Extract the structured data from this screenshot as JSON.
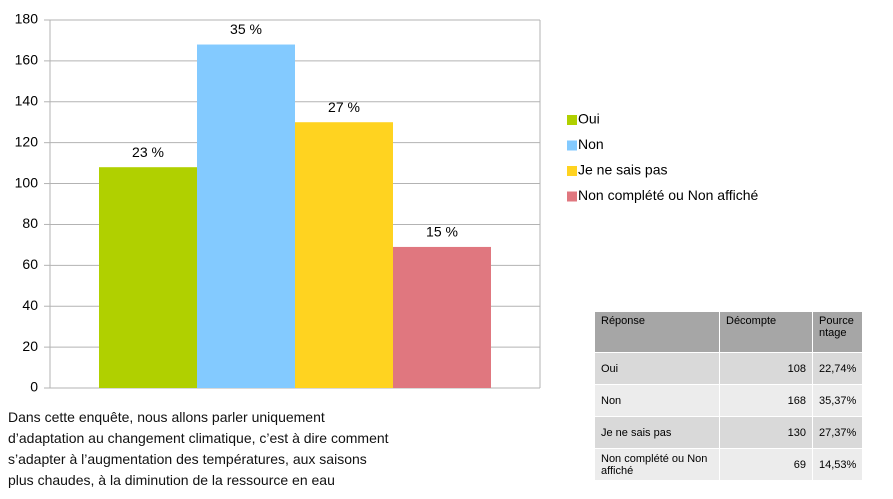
{
  "chart_data": {
    "type": "bar",
    "categories": [
      null
    ],
    "series": [
      {
        "name": "Oui",
        "color": "#b0d000",
        "values": [
          108
        ],
        "value_labels": [
          "23 %"
        ]
      },
      {
        "name": "Non",
        "color": "#83caff",
        "values": [
          168
        ],
        "value_labels": [
          "35 %"
        ]
      },
      {
        "name": "Je ne sais pas",
        "color": "#ffd320",
        "values": [
          130
        ],
        "value_labels": [
          "27 %"
        ]
      },
      {
        "name": "Non complété ou Non affiché",
        "color": "#e0777f",
        "values": [
          69
        ],
        "value_labels": [
          "15 %"
        ]
      }
    ],
    "ylim": [
      0,
      180
    ],
    "yticks": [
      0,
      20,
      40,
      60,
      80,
      100,
      120,
      140,
      160,
      180
    ],
    "grid": true,
    "legend": "right"
  },
  "table": {
    "header": [
      "Réponse",
      "Décompte",
      "Pourcentage"
    ],
    "rows": [
      [
        "Oui",
        108,
        "22,74%"
      ],
      [
        "Non",
        168,
        "35,37%"
      ],
      [
        "Je ne sais pas",
        130,
        "27,37%"
      ],
      [
        "Non complété ou Non affiché",
        69,
        "14,53%"
      ]
    ]
  },
  "text": [
    "Dans cette enquête, nous allons parler uniquement",
    "d’adaptation au changement climatique, c’est à dire comment",
    "s’adapter à l’augmentation des températures, aux saisons",
    "plus chaudes, à la diminution de la ressource en eau"
  ]
}
